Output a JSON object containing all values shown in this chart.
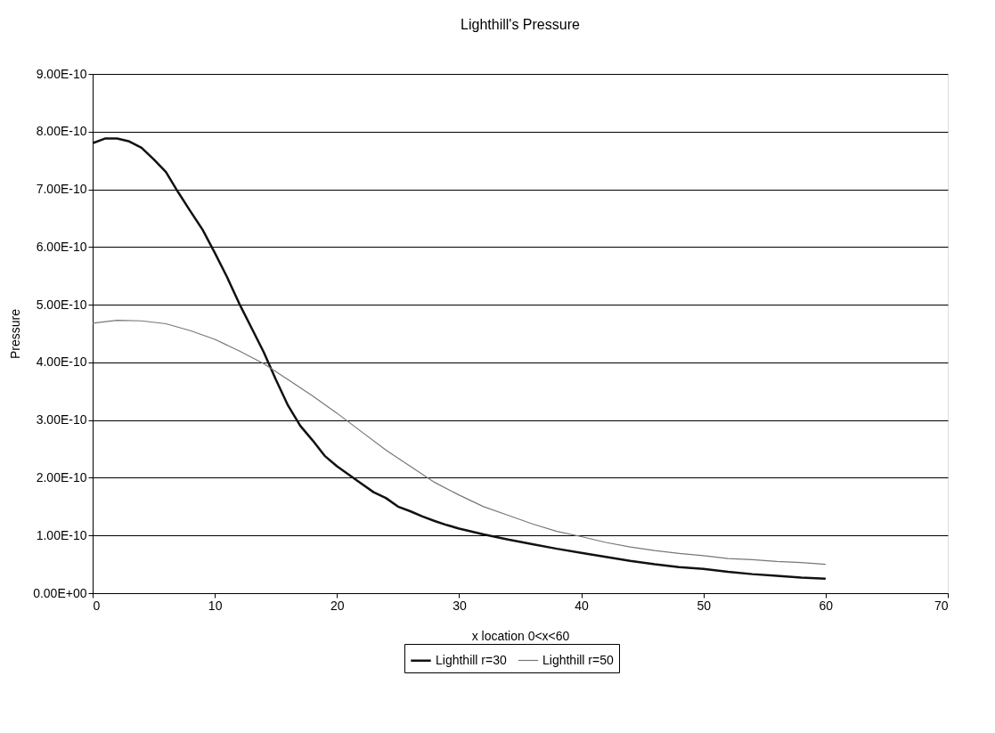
{
  "chart_data": {
    "type": "line",
    "title": "Lighthill's Pressure",
    "xlabel": "x location 0<x<60",
    "ylabel": "Pressure",
    "xlim": [
      0,
      70
    ],
    "xticks": [
      0,
      10,
      20,
      30,
      40,
      50,
      60,
      70
    ],
    "ylim": [
      0,
      9e-10
    ],
    "yticks": [
      {
        "value": 0,
        "label": "0.00E+00"
      },
      {
        "value": 1e-10,
        "label": "1.00E-10"
      },
      {
        "value": 2e-10,
        "label": "2.00E-10"
      },
      {
        "value": 3e-10,
        "label": "3.00E-10"
      },
      {
        "value": 4e-10,
        "label": "4.00E-10"
      },
      {
        "value": 5e-10,
        "label": "5.00E-10"
      },
      {
        "value": 6e-10,
        "label": "6.00E-10"
      },
      {
        "value": 7e-10,
        "label": "7.00E-10"
      },
      {
        "value": 8e-10,
        "label": "8.00E-10"
      },
      {
        "value": 9e-10,
        "label": "9.00E-10"
      }
    ],
    "grid": "y",
    "legend": "bottom",
    "marker": "none",
    "line_style": "solid",
    "series": [
      {
        "name": "Lighthill r=30",
        "color": "#111111",
        "x": [
          0,
          1,
          2,
          3,
          4,
          5,
          6,
          7,
          8,
          9,
          10,
          11,
          12,
          13,
          14,
          15,
          16,
          17,
          18,
          19,
          20,
          21,
          22,
          23,
          24,
          25,
          26,
          27,
          28,
          29,
          30,
          32,
          34,
          36,
          38,
          40,
          42,
          44,
          46,
          48,
          50,
          52,
          54,
          56,
          58,
          60
        ],
        "values": [
          7.8e-10,
          7.88e-10,
          7.88e-10,
          7.83e-10,
          7.72e-10,
          7.52e-10,
          7.3e-10,
          6.95e-10,
          6.62e-10,
          6.3e-10,
          5.9e-10,
          5.48e-10,
          5.02e-10,
          4.6e-10,
          4.18e-10,
          3.7e-10,
          3.25e-10,
          2.9e-10,
          2.65e-10,
          2.38e-10,
          2.2e-10,
          2.05e-10,
          1.9e-10,
          1.75e-10,
          1.65e-10,
          1.5e-10,
          1.42e-10,
          1.33e-10,
          1.25e-10,
          1.18e-10,
          1.12e-10,
          1.02e-10,
          9.3e-11,
          8.5e-11,
          7.7e-11,
          7e-11,
          6.3e-11,
          5.6e-11,
          5e-11,
          4.5e-11,
          4.2e-11,
          3.7e-11,
          3.3e-11,
          3e-11,
          2.7e-11,
          2.5e-11
        ]
      },
      {
        "name": "Lighthill r=50",
        "color": "#777777",
        "x": [
          0,
          2,
          4,
          6,
          8,
          10,
          12,
          14,
          16,
          18,
          20,
          22,
          24,
          26,
          28,
          30,
          32,
          34,
          36,
          38,
          40,
          42,
          44,
          46,
          48,
          50,
          52,
          54,
          56,
          58,
          60
        ],
        "values": [
          4.68e-10,
          4.73e-10,
          4.72e-10,
          4.67e-10,
          4.55e-10,
          4.4e-10,
          4.2e-10,
          3.98e-10,
          3.7e-10,
          3.42e-10,
          3.12e-10,
          2.8e-10,
          2.48e-10,
          2.2e-10,
          1.92e-10,
          1.7e-10,
          1.5e-10,
          1.35e-10,
          1.2e-10,
          1.07e-10,
          9.8e-11,
          8.8e-11,
          8e-11,
          7.4e-11,
          6.9e-11,
          6.5e-11,
          6e-11,
          5.8e-11,
          5.5e-11,
          5.3e-11,
          5e-11
        ]
      }
    ]
  }
}
